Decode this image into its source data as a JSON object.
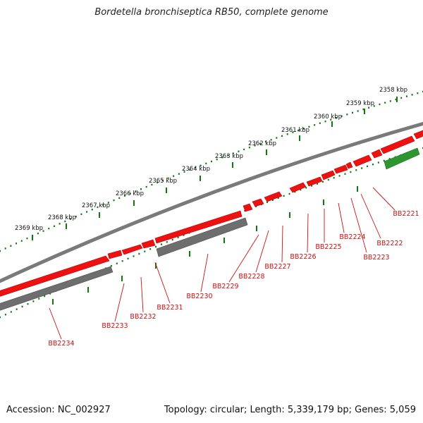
{
  "title": "Bordetella bronchiseptica RB50, complete genome",
  "accession": "Accession: NC_002927",
  "stats": "Topology: circular; Length: 5,339,179 bp; Genes: 5,059",
  "scale_labels": [
    "2358 kbp",
    "2359 kbp",
    "2360 kbp",
    "2361 kbp",
    "2362 kbp",
    "2363 kbp",
    "2364 kbp",
    "2365 kbp",
    "2366 kbp",
    "2367 kbp",
    "2368 kbp",
    "2369 kbp"
  ],
  "gene_labels": [
    "BB2221",
    "BB2222",
    "BB2223",
    "BB2224",
    "BB2225",
    "BB2226",
    "BB2227",
    "BB2228",
    "BB2229",
    "BB2230",
    "BB2231",
    "BB2232",
    "BB2233",
    "BB2234"
  ],
  "colors": {
    "forward_gene": "#ee1111",
    "reverse_gene": "#ee1111",
    "pseudo_gene": "#6e6e6e",
    "rna_gene": "#2e962e",
    "backbone": "#7a7a7a",
    "ticks": "#117711",
    "label": "#cc1111"
  }
}
